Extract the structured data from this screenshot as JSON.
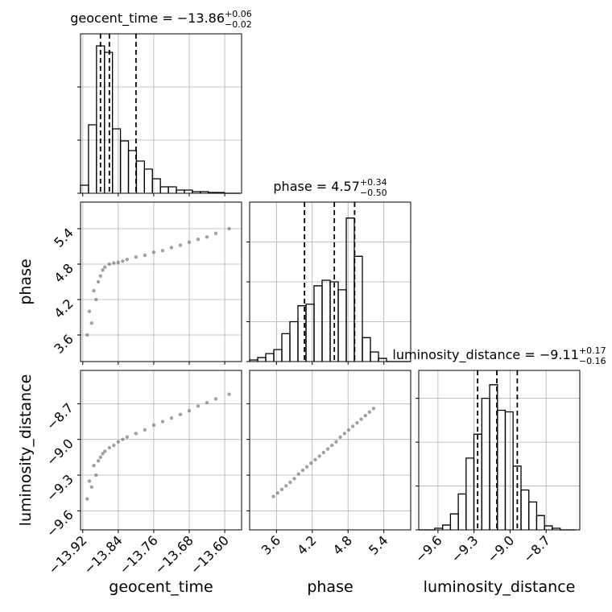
{
  "chart_data": {
    "type": "corner",
    "grid": true,
    "hist_color": "#000000",
    "point_color": "#555555",
    "parameters": [
      {
        "name": "geocent_time",
        "lim": [
          -13.925,
          -13.562
        ],
        "ticks": [
          {
            "value": -13.92,
            "label": "−13.92"
          },
          {
            "value": -13.84,
            "label": "−13.84"
          },
          {
            "value": -13.76,
            "label": "−13.76"
          },
          {
            "value": -13.68,
            "label": "−13.68"
          },
          {
            "value": -13.6,
            "label": "−13.60"
          }
        ]
      },
      {
        "name": "phase",
        "lim": [
          3.15,
          5.85
        ],
        "ticks": [
          3.6,
          4.2,
          4.8,
          5.4
        ]
      },
      {
        "name": "luminosity_distance",
        "lim": [
          -9.76,
          -8.42
        ],
        "ticks": [
          {
            "value": -9.6,
            "label": "−9.6"
          },
          {
            "value": -9.3,
            "label": "−9.3"
          },
          {
            "value": -9.0,
            "label": "−9.0"
          },
          {
            "value": -8.7,
            "label": "−8.7"
          }
        ]
      }
    ],
    "diagonal": [
      {
        "type": "hist",
        "title": "geocent_time = −13.86",
        "upper": "+0.06",
        "lower": "−0.02",
        "bins": [
          -13.925,
          -13.907,
          -13.889,
          -13.871,
          -13.853,
          -13.835,
          -13.817,
          -13.799,
          -13.781,
          -13.763,
          -13.745,
          -13.727,
          -13.709,
          -13.691,
          -13.673,
          -13.655,
          -13.637,
          -13.619,
          -13.601,
          -13.583,
          -13.565
        ],
        "counts": [
          10,
          85,
          183,
          175,
          80,
          65,
          53,
          40,
          30,
          18,
          8,
          8,
          4,
          4,
          2,
          2,
          1,
          1,
          0,
          0
        ],
        "ylim": [
          0,
          198
        ],
        "yticks": [
          0,
          66,
          132
        ],
        "quantiles": [
          -13.88,
          -13.86,
          -13.8
        ]
      },
      {
        "type": "hist",
        "title": "phase = 4.57",
        "upper": "+0.34",
        "lower": "−0.50",
        "bins": [
          3.15,
          3.285,
          3.42,
          3.555,
          3.69,
          3.825,
          3.96,
          4.095,
          4.23,
          4.365,
          4.5,
          4.635,
          4.77,
          4.905,
          5.04,
          5.175,
          5.31,
          5.445,
          5.58,
          5.715,
          5.85
        ],
        "counts": [
          2,
          5,
          10,
          15,
          35,
          50,
          70,
          72,
          95,
          102,
          100,
          90,
          180,
          132,
          30,
          12,
          4,
          0,
          0,
          0
        ],
        "ylim": [
          0,
          200
        ],
        "yticks": [
          0,
          50,
          100,
          150
        ],
        "quantiles": [
          4.07,
          4.57,
          4.91
        ]
      },
      {
        "type": "hist",
        "title": "luminosity_distance = −9.11",
        "upper": "+0.17",
        "lower": "−0.16",
        "bins": [
          -9.757,
          -9.692,
          -9.627,
          -9.561,
          -9.496,
          -9.431,
          -9.366,
          -9.301,
          -9.235,
          -9.17,
          -9.105,
          -9.04,
          -8.975,
          -8.909,
          -8.844,
          -8.779,
          -8.714,
          -8.649,
          -8.583,
          -8.518,
          -8.453
        ],
        "counts": [
          0,
          0,
          2,
          6,
          20,
          45,
          90,
          120,
          165,
          182,
          150,
          148,
          80,
          50,
          35,
          18,
          5,
          2,
          0,
          0
        ],
        "ylim": [
          0,
          200
        ],
        "yticks": [
          0,
          55,
          110,
          165
        ],
        "quantiles": [
          -9.27,
          -9.11,
          -8.94
        ]
      }
    ],
    "pairs": [
      {
        "type": "scatter",
        "x": [
          -13.91,
          -13.9,
          -13.905,
          -13.89,
          -13.895,
          -13.885,
          -13.88,
          -13.875,
          -13.87,
          -13.86,
          -13.85,
          -13.84,
          -13.83,
          -13.82,
          -13.8,
          -13.78,
          -13.76,
          -13.74,
          -13.72,
          -13.7,
          -13.68,
          -13.66,
          -13.64,
          -13.62,
          -13.59
        ],
        "y": [
          3.6,
          3.8,
          4.0,
          4.2,
          4.35,
          4.5,
          4.6,
          4.7,
          4.75,
          4.8,
          4.82,
          4.83,
          4.85,
          4.88,
          4.92,
          4.95,
          5.0,
          5.03,
          5.08,
          5.12,
          5.17,
          5.22,
          5.26,
          5.32,
          5.4
        ]
      },
      {
        "type": "scatter",
        "x": [
          -13.91,
          -13.9,
          -13.905,
          -13.89,
          -13.895,
          -13.885,
          -13.88,
          -13.875,
          -13.87,
          -13.86,
          -13.85,
          -13.84,
          -13.83,
          -13.82,
          -13.8,
          -13.78,
          -13.76,
          -13.74,
          -13.72,
          -13.7,
          -13.68,
          -13.66,
          -13.64,
          -13.62,
          -13.59
        ],
        "y": [
          -9.5,
          -9.4,
          -9.35,
          -9.3,
          -9.22,
          -9.18,
          -9.15,
          -9.12,
          -9.1,
          -9.07,
          -9.05,
          -9.02,
          -9.0,
          -8.98,
          -8.95,
          -8.92,
          -8.88,
          -8.85,
          -8.82,
          -8.79,
          -8.76,
          -8.72,
          -8.69,
          -8.66,
          -8.62
        ]
      },
      {
        "type": "scatter",
        "x": [
          3.55,
          3.62,
          3.69,
          3.76,
          3.83,
          3.9,
          3.97,
          4.04,
          4.11,
          4.18,
          4.25,
          4.32,
          4.39,
          4.46,
          4.53,
          4.6,
          4.67,
          4.74,
          4.81,
          4.88,
          4.95,
          5.02,
          5.09,
          5.16,
          5.23
        ],
        "y": [
          -9.48,
          -9.45,
          -9.42,
          -9.39,
          -9.36,
          -9.33,
          -9.29,
          -9.26,
          -9.23,
          -9.2,
          -9.17,
          -9.14,
          -9.11,
          -9.08,
          -9.05,
          -9.02,
          -8.98,
          -8.95,
          -8.92,
          -8.89,
          -8.86,
          -8.83,
          -8.8,
          -8.77,
          -8.74
        ]
      }
    ]
  }
}
